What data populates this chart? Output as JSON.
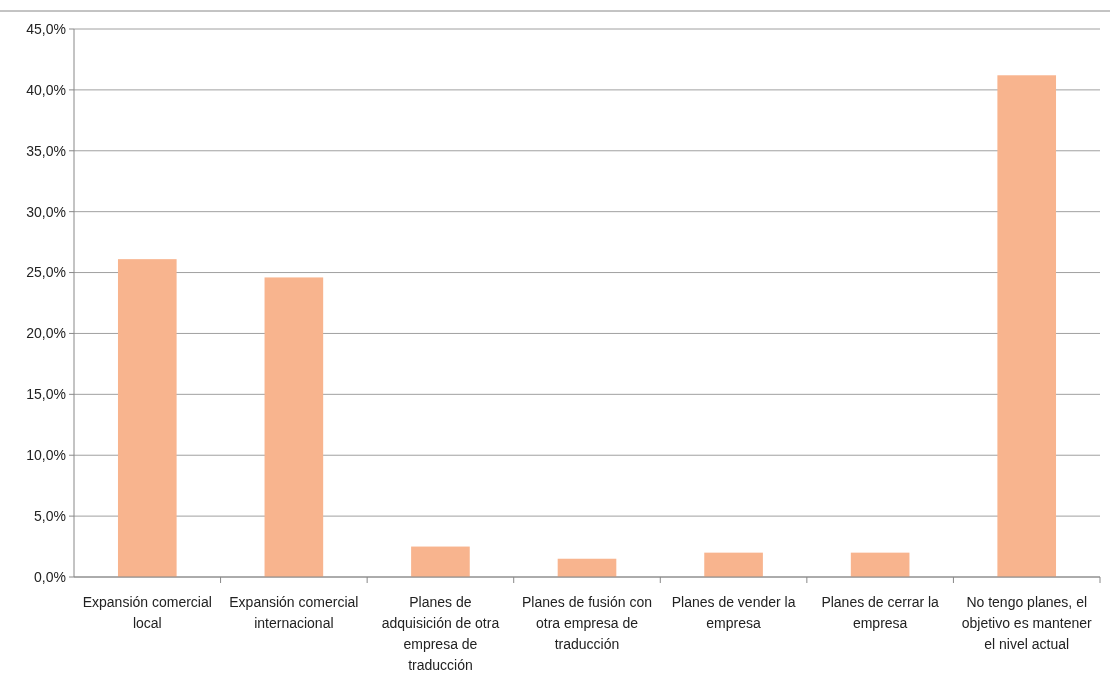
{
  "chart_data": {
    "type": "bar",
    "categories": [
      "Expansión comercial local",
      "Expansión comercial internacional",
      "Planes de adquisición de otra empresa de traducción",
      "Planes de fusión con otra empresa de traducción",
      "Planes de vender la empresa",
      "Planes de cerrar la empresa",
      "No tengo planes, el objetivo es mantener el nivel actual"
    ],
    "values": [
      26.1,
      24.6,
      2.5,
      1.5,
      2.0,
      2.0,
      41.2
    ],
    "color": "#f8b48e",
    "ylim": [
      0,
      45
    ],
    "yticks": [
      {
        "value": 0,
        "label": "0,0%"
      },
      {
        "value": 5,
        "label": "5,0%"
      },
      {
        "value": 10,
        "label": "10,0%"
      },
      {
        "value": 15,
        "label": "15,0%"
      },
      {
        "value": 20,
        "label": "20,0%"
      },
      {
        "value": 25,
        "label": "25,0%"
      },
      {
        "value": 30,
        "label": "30,0%"
      },
      {
        "value": 35,
        "label": "35,0%"
      },
      {
        "value": 40,
        "label": "40,0%"
      },
      {
        "value": 45,
        "label": "45,0%"
      }
    ],
    "grid": "y"
  }
}
